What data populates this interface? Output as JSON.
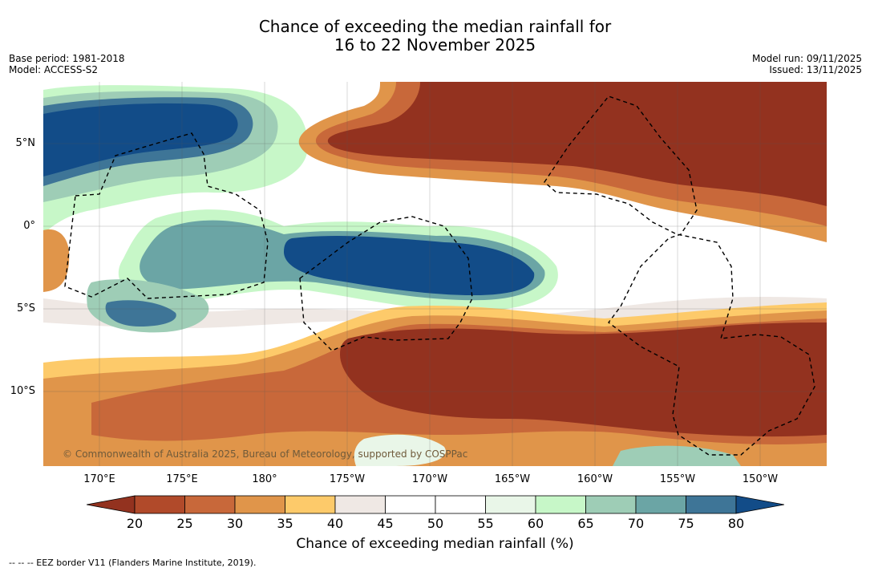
{
  "title_line1": "Chance of exceeding the median rainfall for",
  "title_line2": "16 to 22 November 2025",
  "base_period": "Base period: 1981-2018",
  "model": "Model: ACCESS-S2",
  "model_run": "Model run: 09/11/2025",
  "issued": "Issued: 13/11/2025",
  "lat_labels": [
    "5°N",
    "0°",
    "5°S",
    "10°S"
  ],
  "lon_labels": [
    "170°E",
    "175°E",
    "180°",
    "175°W",
    "170°W",
    "165°W",
    "160°W",
    "155°W",
    "150°W"
  ],
  "colorbar": {
    "ticks": [
      "20",
      "25",
      "30",
      "35",
      "40",
      "45",
      "50",
      "55",
      "60",
      "65",
      "70",
      "75",
      "80"
    ],
    "colors": [
      "#93321f",
      "#b14a2a",
      "#c8683a",
      "#e0954a",
      "#fdca6a",
      "#efe8e4",
      "#ffffff",
      "#ffffff",
      "#e9f6e8",
      "#c7f7c8",
      "#9ecdb6",
      "#6ba5a5",
      "#3e7597"
    ],
    "low_end_color": "#93321f",
    "high_end_color": "#124c88",
    "label": "Chance of exceeding median rainfall (%)"
  },
  "copyright": "© Commonwealth of Australia 2025, Bureau of Meteorology, supported by COSPPac",
  "eez_legend": "--  --  -- EEZ border V11 (Flanders Marine Institute, 2019)."
}
